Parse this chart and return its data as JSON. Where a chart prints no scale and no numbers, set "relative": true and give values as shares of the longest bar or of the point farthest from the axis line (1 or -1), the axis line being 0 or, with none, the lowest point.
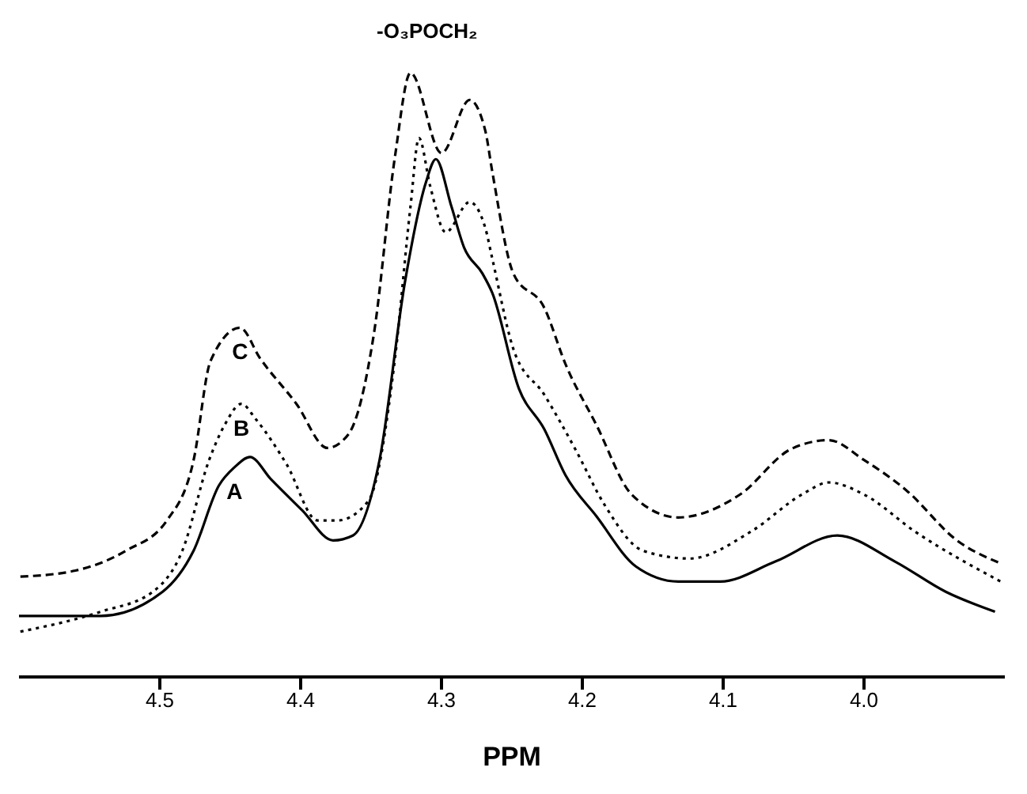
{
  "chart_data": {
    "type": "line",
    "title": "-O₃POCH₂",
    "xlabel": "PPM",
    "relative": true,
    "xlim": [
      4.6,
      3.9
    ],
    "xticks": [
      4.5,
      4.4,
      4.3,
      4.2,
      4.1,
      {
        "value": 4,
        "label": "4.0"
      }
    ],
    "marker": "none",
    "series": [
      {
        "name": "C",
        "color": "#000000",
        "line_style": "dashed",
        "x": [
          4.599,
          4.56,
          4.524,
          4.495,
          4.476,
          4.464,
          4.443,
          4.429,
          4.403,
          4.381,
          4.366,
          4.348,
          4.333,
          4.322,
          4.3,
          4.28,
          4.269,
          4.264,
          4.249,
          4.227,
          4.212,
          4.19,
          4.165,
          4.132,
          4.088,
          4.052,
          4.025,
          4,
          3.97,
          3.934,
          3.903
        ],
        "values": [
          0.166,
          0.176,
          0.209,
          0.259,
          0.359,
          0.523,
          0.578,
          0.528,
          0.452,
          0.379,
          0.402,
          0.568,
          0.862,
          1,
          0.867,
          0.955,
          0.905,
          0.837,
          0.668,
          0.611,
          0.518,
          0.417,
          0.302,
          0.264,
          0.302,
          0.377,
          0.392,
          0.359,
          0.309,
          0.226,
          0.188
        ]
      },
      {
        "name": "B",
        "color": "#000000",
        "line_style": "dotted",
        "x": [
          4.599,
          4.542,
          4.505,
          4.484,
          4.465,
          4.454,
          4.442,
          4.432,
          4.41,
          4.388,
          4.374,
          4.352,
          4.333,
          4.322,
          4.316,
          4.308,
          4.297,
          4.28,
          4.269,
          4.264,
          4.249,
          4.227,
          4.205,
          4.184,
          4.157,
          4.124,
          4.08,
          4.044,
          4.025,
          4,
          3.964,
          3.903
        ],
        "values": [
          0.075,
          0.108,
          0.141,
          0.209,
          0.359,
          0.417,
          0.452,
          0.427,
          0.352,
          0.259,
          0.259,
          0.291,
          0.528,
          0.779,
          0.892,
          0.812,
          0.736,
          0.786,
          0.744,
          0.693,
          0.543,
          0.467,
          0.377,
          0.284,
          0.209,
          0.196,
          0.241,
          0.302,
          0.322,
          0.302,
          0.241,
          0.158
        ]
      },
      {
        "name": "A",
        "color": "#000000",
        "line_style": "solid",
        "x": [
          4.6,
          4.542,
          4.498,
          4.476,
          4.458,
          4.447,
          4.436,
          4.421,
          4.399,
          4.377,
          4.363,
          4.344,
          4.326,
          4.311,
          4.304,
          4.293,
          4.284,
          4.271,
          4.264,
          4.245,
          4.227,
          4.212,
          4.19,
          4.162,
          4.132,
          4.102,
          4.063,
          4.019,
          3.978,
          3.942,
          3.907
        ],
        "values": [
          0.101,
          0.101,
          0.141,
          0.209,
          0.317,
          0.347,
          0.364,
          0.327,
          0.276,
          0.226,
          0.234,
          0.359,
          0.653,
          0.819,
          0.857,
          0.779,
          0.711,
          0.668,
          0.636,
          0.477,
          0.41,
          0.334,
          0.266,
          0.183,
          0.158,
          0.158,
          0.191,
          0.234,
          0.191,
          0.141,
          0.108
        ]
      }
    ]
  }
}
